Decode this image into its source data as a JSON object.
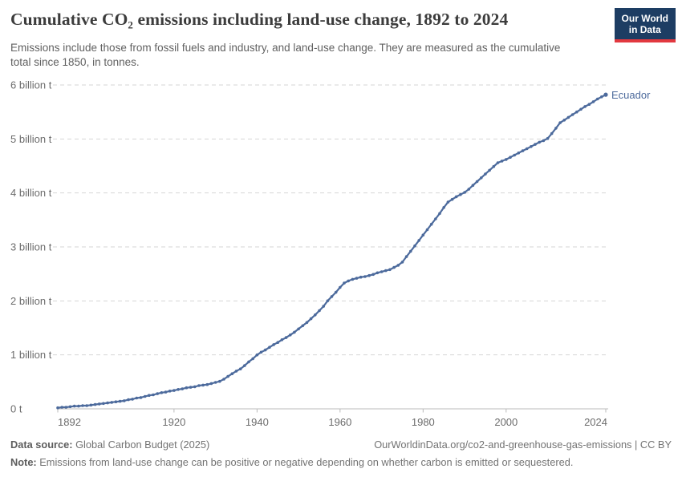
{
  "header": {
    "title": "Cumulative CO₂ emissions including land-use change, 1892 to 2024",
    "subtitle": "Emissions include those from fossil fuels and industry, and land-use change. They are measured as the cumulative total since 1850, in tonnes.",
    "logo": {
      "line1": "Our World",
      "line2": "in Data",
      "bg_color": "#1d3d63",
      "bar_color": "#e2383f"
    }
  },
  "footer": {
    "source_label": "Data source:",
    "source_text": " Global Carbon Budget (2025)",
    "link_text": "OurWorldinData.org/co2-and-greenhouse-gas-emissions | CC BY",
    "note_label": "Note:",
    "note_text": " Emissions from land-use change can be positive or negative depending on whether carbon is emitted or sequestered."
  },
  "chart_data": {
    "type": "line",
    "title": "Cumulative CO₂ emissions including land-use change, 1892 to 2024",
    "entity": "Ecuador",
    "unit": "tonnes",
    "value_unit": "billion t",
    "x_start": 1892,
    "x_end": 2024,
    "ylim": [
      0,
      6
    ],
    "ytick_labels": [
      "0 t",
      "1 billion t",
      "2 billion t",
      "3 billion t",
      "4 billion t",
      "5 billion t",
      "6 billion t"
    ],
    "xticks": [
      1892,
      1920,
      1940,
      1960,
      1980,
      2000,
      2024
    ],
    "grid": true,
    "line_color": "#4c6a9c",
    "values": [
      0.02,
      0.03,
      0.03,
      0.04,
      0.05,
      0.05,
      0.06,
      0.06,
      0.07,
      0.08,
      0.09,
      0.1,
      0.11,
      0.12,
      0.13,
      0.14,
      0.15,
      0.17,
      0.18,
      0.2,
      0.21,
      0.23,
      0.25,
      0.26,
      0.28,
      0.3,
      0.31,
      0.33,
      0.34,
      0.36,
      0.37,
      0.39,
      0.4,
      0.41,
      0.43,
      0.44,
      0.45,
      0.47,
      0.49,
      0.51,
      0.55,
      0.6,
      0.65,
      0.7,
      0.74,
      0.8,
      0.87,
      0.93,
      1.0,
      1.05,
      1.09,
      1.14,
      1.19,
      1.23,
      1.28,
      1.32,
      1.37,
      1.42,
      1.48,
      1.54,
      1.6,
      1.67,
      1.74,
      1.82,
      1.9,
      2.0,
      2.08,
      2.16,
      2.25,
      2.33,
      2.37,
      2.4,
      2.42,
      2.44,
      2.45,
      2.47,
      2.49,
      2.52,
      2.54,
      2.56,
      2.58,
      2.62,
      2.66,
      2.72,
      2.82,
      2.92,
      3.02,
      3.12,
      3.22,
      3.32,
      3.42,
      3.52,
      3.62,
      3.73,
      3.83,
      3.88,
      3.93,
      3.97,
      4.01,
      4.07,
      4.14,
      4.21,
      4.28,
      4.35,
      4.42,
      4.49,
      4.56,
      4.59,
      4.62,
      4.66,
      4.7,
      4.74,
      4.78,
      4.82,
      4.86,
      4.9,
      4.94,
      4.97,
      5.01,
      5.1,
      5.2,
      5.3,
      5.35,
      5.4,
      5.45,
      5.5,
      5.55,
      5.6,
      5.64,
      5.69,
      5.74,
      5.78,
      5.82
    ]
  }
}
